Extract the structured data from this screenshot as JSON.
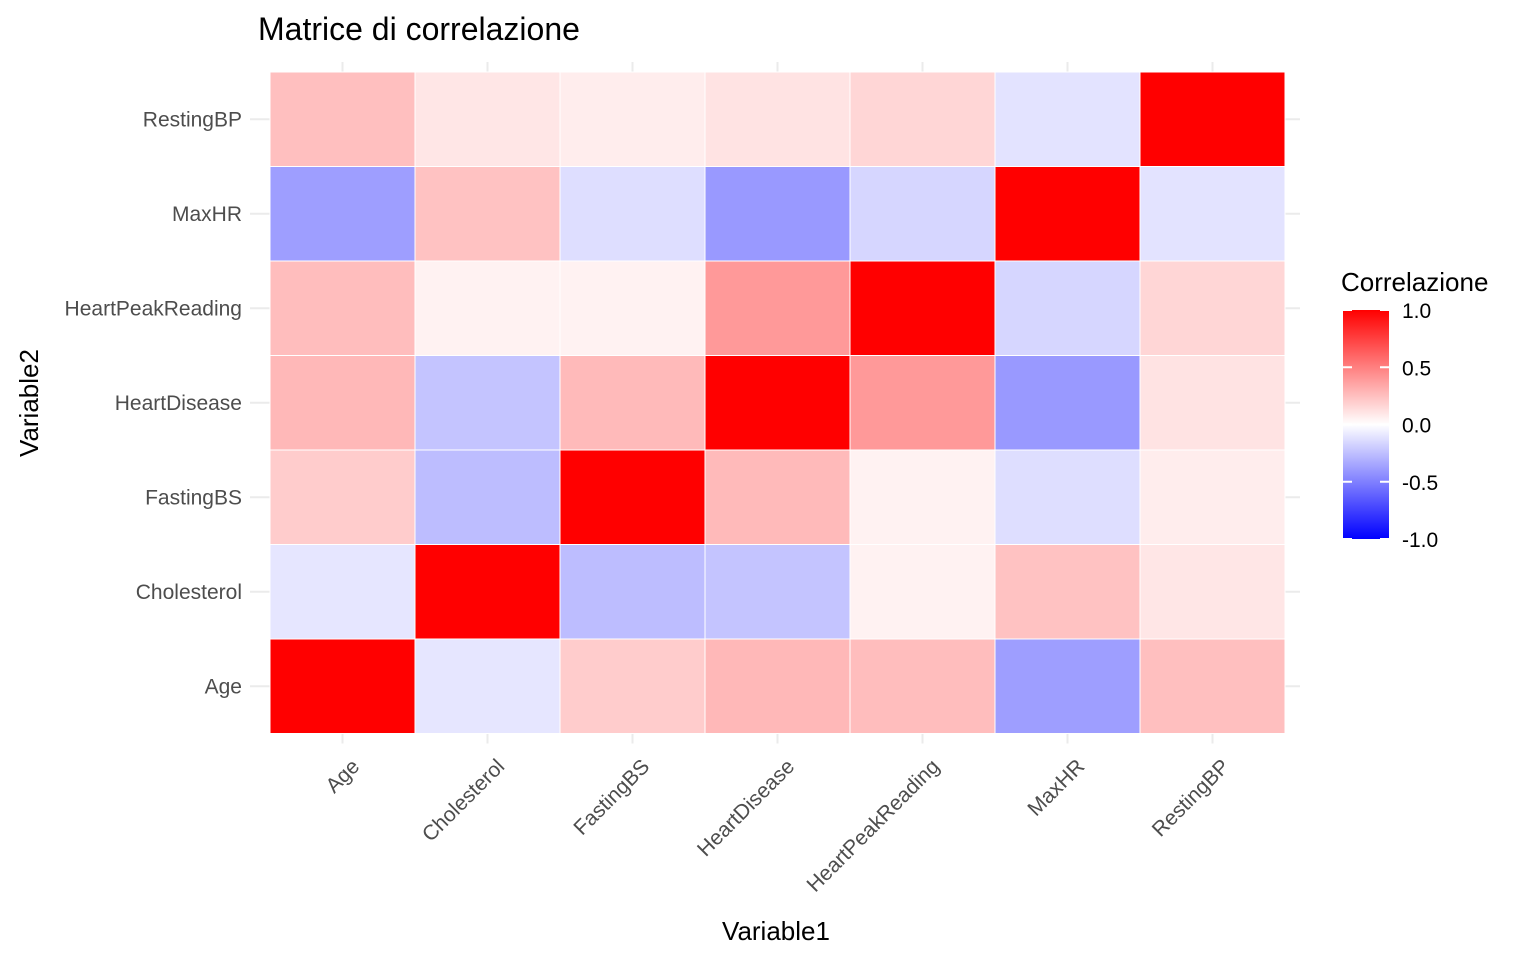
{
  "chart_data": {
    "type": "heatmap",
    "title": "Matrice di correlazione",
    "xlabel": "Variable1",
    "ylabel": "Variable2",
    "variables": [
      "Age",
      "Cholesterol",
      "FastingBS",
      "HeartDisease",
      "HeartPeakReading",
      "MaxHR",
      "RestingBP"
    ],
    "matrix": [
      [
        1.0,
        -0.1,
        0.2,
        0.28,
        0.26,
        -0.38,
        0.25
      ],
      [
        -0.1,
        1.0,
        -0.26,
        -0.23,
        0.05,
        0.24,
        0.1
      ],
      [
        0.2,
        -0.26,
        1.0,
        0.27,
        0.05,
        -0.13,
        0.07
      ],
      [
        0.28,
        -0.23,
        0.27,
        1.0,
        0.4,
        -0.4,
        0.11
      ],
      [
        0.26,
        0.05,
        0.05,
        0.4,
        1.0,
        -0.16,
        0.16
      ],
      [
        -0.38,
        0.24,
        -0.13,
        -0.4,
        -0.16,
        1.0,
        -0.11
      ],
      [
        0.25,
        0.1,
        0.07,
        0.11,
        0.16,
        -0.11,
        1.0
      ]
    ],
    "legend": {
      "title": "Correlazione",
      "labels": [
        "1.0",
        "0.5",
        "0.0",
        "-0.5",
        "-1.0"
      ],
      "breaks": [
        1.0,
        0.5,
        0.0,
        -0.5,
        -1.0
      ],
      "range": [
        -1,
        1
      ],
      "low_color": "#0000ff",
      "mid_color": "#ffffff",
      "high_color": "#ff0000"
    }
  }
}
